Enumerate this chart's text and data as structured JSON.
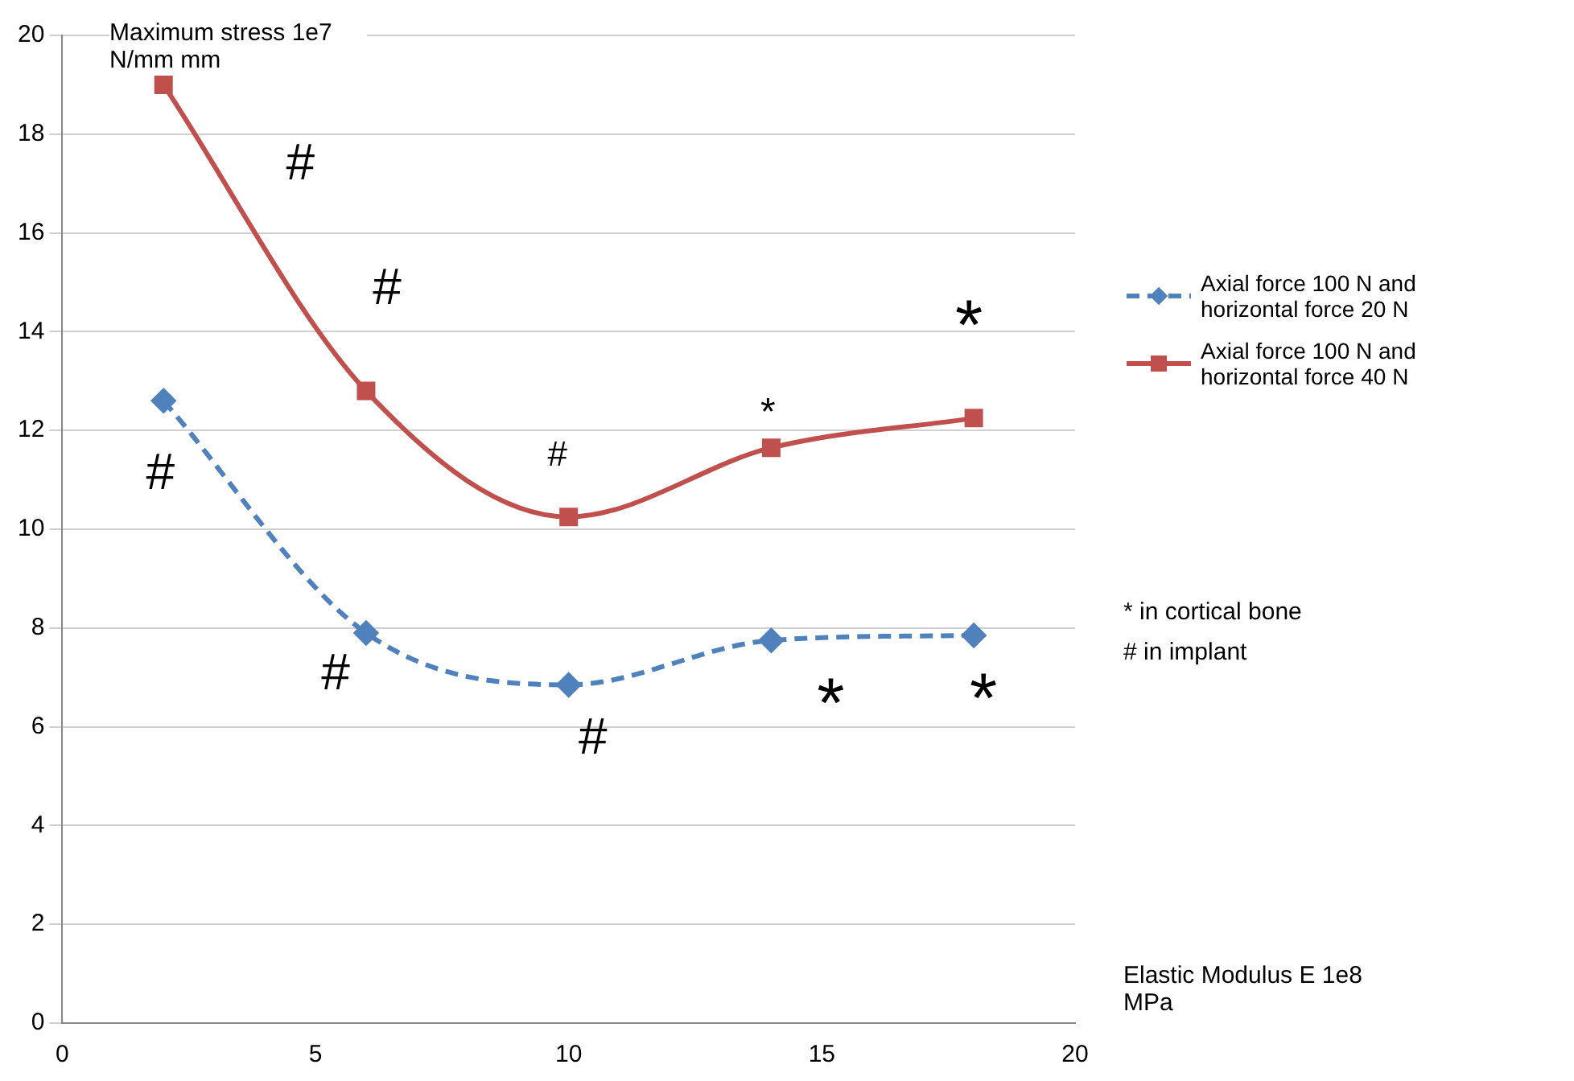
{
  "chart_data": {
    "type": "line",
    "xlabel": "Elastic Modulus E 1e8 MPa",
    "ylabel": "Maximum stress 1e7 N/mm mm",
    "x": [
      2,
      6,
      10,
      14,
      18
    ],
    "series": [
      {
        "name": "Axial force 100 N and horizontal force 20 N",
        "color": "#4f81bd",
        "values": [
          12.6,
          7.9,
          6.85,
          7.75,
          7.85
        ],
        "marker": "diamond",
        "line_style": "dashed"
      },
      {
        "name": "Axial force 100 N and horizontal force 40 N",
        "color": "#c0504d",
        "values": [
          19.0,
          12.8,
          10.25,
          11.65,
          12.25
        ],
        "marker": "square",
        "line_style": "solid"
      }
    ],
    "xlim": [
      0,
      20
    ],
    "xticks": [
      0,
      5,
      10,
      15,
      20
    ],
    "ylim": [
      0,
      20
    ],
    "yticks": [
      0,
      2,
      4,
      6,
      8,
      10,
      12,
      14,
      16,
      18,
      20
    ],
    "grid": "y",
    "legend": "right",
    "annotations": [
      {
        "text": "#",
        "x": 2,
        "y": 19.0
      },
      {
        "text": "#",
        "x": 6,
        "y": 12.8
      },
      {
        "text": "#",
        "x": 10,
        "y": 10.25
      },
      {
        "text": "*",
        "x": 14,
        "y": 11.65
      },
      {
        "text": "*",
        "x": 18,
        "y": 12.25
      },
      {
        "text": "#",
        "x": 2,
        "y": 12.6
      },
      {
        "text": "#",
        "x": 6,
        "y": 7.9
      },
      {
        "text": "#",
        "x": 10,
        "y": 6.85
      },
      {
        "text": "*",
        "x": 14,
        "y": 7.75
      },
      {
        "text": "*",
        "x": 18,
        "y": 7.85
      },
      "* in cortical bone",
      "# in implant"
    ]
  }
}
